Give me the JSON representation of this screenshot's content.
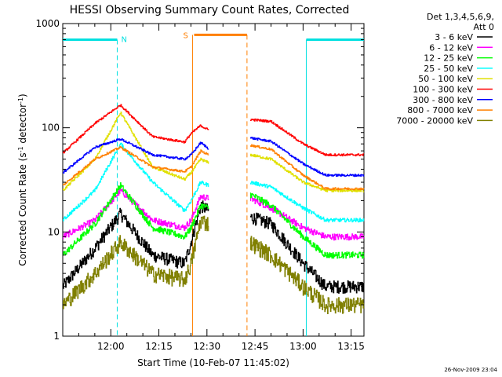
{
  "chart_data": {
    "type": "line",
    "title": "HESSI Observing Summary Count Rates, Corrected",
    "xlabel": "Start Time (10-Feb-07 11:45:02)",
    "ylabel_main": "Corrected Count Rate (s",
    "ylabel_sup1": "-1",
    "ylabel_mid": " detector",
    "ylabel_sup2": "-1",
    "ylabel_end": ")",
    "yscale": "log",
    "ylim": [
      1,
      1000
    ],
    "xlim_minutes": [
      0,
      94
    ],
    "grid": false,
    "legend_position": "right",
    "legend_header_line1": "Det 1,3,4,5,6,9,",
    "legend_header_line2": "Att 0",
    "footer_timestamp": "26-Nov-2009 23:04",
    "x_ticks": [
      {
        "t": 15,
        "label": "12:00"
      },
      {
        "t": 30,
        "label": "12:15"
      },
      {
        "t": 45,
        "label": "12:30"
      },
      {
        "t": 60,
        "label": "12:45"
      },
      {
        "t": 75,
        "label": "13:00"
      },
      {
        "t": 90,
        "label": "13:15"
      }
    ],
    "y_ticks": [
      {
        "v": 1,
        "label": "1"
      },
      {
        "v": 10,
        "label": "10"
      },
      {
        "v": 100,
        "label": "100"
      },
      {
        "v": 1000,
        "label": "1000"
      }
    ],
    "markers": {
      "night": {
        "label": "N",
        "color": "#00e0e0",
        "intervals": [
          [
            0,
            17
          ],
          [
            76,
            94
          ]
        ],
        "y_value": 700
      },
      "saa": {
        "label": "S",
        "color": "#ff7f00",
        "start": 40.5,
        "end": 57.5,
        "y_value": 780
      }
    },
    "data_gap": [
      45.5,
      58.5
    ],
    "series": [
      {
        "name": "3 - 6 keV",
        "color": "#000000",
        "noise": 0.14,
        "points": [
          [
            0,
            3
          ],
          [
            10,
            7
          ],
          [
            18,
            15
          ],
          [
            28,
            6
          ],
          [
            38,
            5
          ],
          [
            40,
            8
          ],
          [
            43,
            18
          ],
          [
            45.5,
            16
          ],
          [
            58.5,
            14
          ],
          [
            65,
            12
          ],
          [
            75,
            5
          ],
          [
            82,
            3
          ],
          [
            94,
            3
          ]
        ]
      },
      {
        "name": "6 - 12 keV",
        "color": "#ff00ff",
        "noise": 0.07,
        "points": [
          [
            0,
            9
          ],
          [
            10,
            13
          ],
          [
            18,
            25
          ],
          [
            28,
            13
          ],
          [
            38,
            11
          ],
          [
            40,
            13
          ],
          [
            43,
            22
          ],
          [
            45.5,
            21
          ],
          [
            58.5,
            21
          ],
          [
            65,
            17
          ],
          [
            75,
            11
          ],
          [
            82,
            9
          ],
          [
            94,
            9
          ]
        ]
      },
      {
        "name": "12 - 25 keV",
        "color": "#00ff00",
        "noise": 0.07,
        "points": [
          [
            0,
            6
          ],
          [
            10,
            12
          ],
          [
            18,
            28
          ],
          [
            28,
            11
          ],
          [
            38,
            9
          ],
          [
            40,
            11
          ],
          [
            43,
            18
          ],
          [
            45.5,
            17
          ],
          [
            58.5,
            23
          ],
          [
            65,
            18
          ],
          [
            75,
            9
          ],
          [
            82,
            6
          ],
          [
            94,
            6
          ]
        ]
      },
      {
        "name": "25 - 50 keV",
        "color": "#00ffff",
        "noise": 0.04,
        "points": [
          [
            0,
            13
          ],
          [
            10,
            25
          ],
          [
            18,
            70
          ],
          [
            28,
            30
          ],
          [
            38,
            16
          ],
          [
            40,
            20
          ],
          [
            43,
            30
          ],
          [
            45.5,
            28
          ],
          [
            58.5,
            30
          ],
          [
            65,
            27
          ],
          [
            75,
            17
          ],
          [
            82,
            13
          ],
          [
            94,
            13
          ]
        ]
      },
      {
        "name": "50 - 100 keV",
        "color": "#e0e000",
        "noise": 0.03,
        "points": [
          [
            0,
            25
          ],
          [
            10,
            50
          ],
          [
            18,
            140
          ],
          [
            28,
            42
          ],
          [
            38,
            32
          ],
          [
            40,
            37
          ],
          [
            43,
            50
          ],
          [
            45.5,
            46
          ],
          [
            58.5,
            55
          ],
          [
            65,
            50
          ],
          [
            75,
            30
          ],
          [
            82,
            25
          ],
          [
            94,
            25
          ]
        ]
      },
      {
        "name": "100 - 300 keV",
        "color": "#ff0000",
        "noise": 0.025,
        "points": [
          [
            0,
            57
          ],
          [
            10,
            110
          ],
          [
            18,
            165
          ],
          [
            28,
            82
          ],
          [
            38,
            73
          ],
          [
            40,
            88
          ],
          [
            43,
            105
          ],
          [
            45.5,
            95
          ],
          [
            58.5,
            120
          ],
          [
            65,
            115
          ],
          [
            75,
            70
          ],
          [
            82,
            55
          ],
          [
            94,
            55
          ]
        ]
      },
      {
        "name": "300 - 800 keV",
        "color": "#0000ff",
        "noise": 0.025,
        "points": [
          [
            0,
            37
          ],
          [
            10,
            65
          ],
          [
            18,
            78
          ],
          [
            28,
            55
          ],
          [
            38,
            50
          ],
          [
            40,
            55
          ],
          [
            43,
            72
          ],
          [
            45.5,
            63
          ],
          [
            58.5,
            80
          ],
          [
            65,
            74
          ],
          [
            75,
            45
          ],
          [
            82,
            35
          ],
          [
            94,
            35
          ]
        ]
      },
      {
        "name": "800 - 7000 keV",
        "color": "#ff8000",
        "noise": 0.025,
        "points": [
          [
            0,
            28
          ],
          [
            10,
            50
          ],
          [
            18,
            65
          ],
          [
            28,
            42
          ],
          [
            38,
            38
          ],
          [
            40,
            42
          ],
          [
            43,
            60
          ],
          [
            45.5,
            55
          ],
          [
            58.5,
            68
          ],
          [
            65,
            62
          ],
          [
            75,
            35
          ],
          [
            82,
            26
          ],
          [
            94,
            26
          ]
        ]
      },
      {
        "name": "7000 - 20000 keV",
        "color": "#808000",
        "noise": 0.18,
        "points": [
          [
            0,
            2
          ],
          [
            10,
            4
          ],
          [
            18,
            8
          ],
          [
            28,
            4
          ],
          [
            38,
            3.5
          ],
          [
            40,
            5
          ],
          [
            43,
            13
          ],
          [
            45.5,
            12
          ],
          [
            58.5,
            8
          ],
          [
            65,
            6
          ],
          [
            75,
            3
          ],
          [
            82,
            2
          ],
          [
            94,
            2
          ]
        ]
      }
    ]
  }
}
